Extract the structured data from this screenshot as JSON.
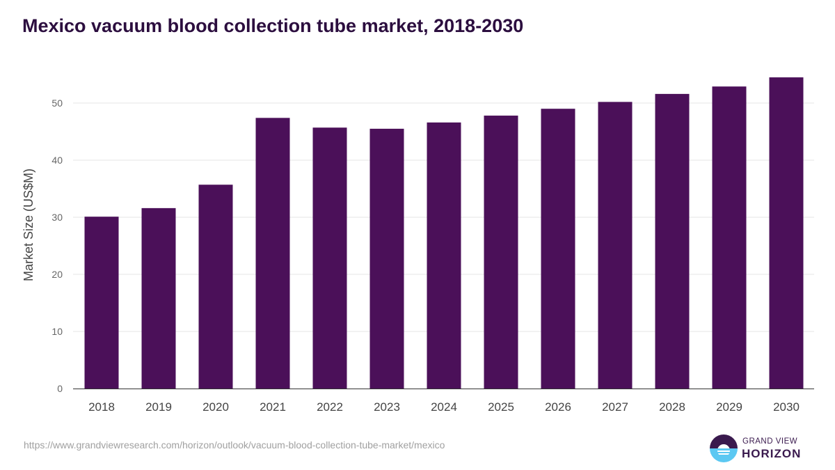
{
  "chart_data": {
    "type": "bar",
    "title": "Mexico vacuum blood collection tube market, 2018-2030",
    "xlabel": "",
    "ylabel": "Market Size (US$M)",
    "ylim": [
      0,
      55
    ],
    "yticks": [
      0,
      10,
      20,
      30,
      40,
      50
    ],
    "grid": true,
    "categories": [
      "2018",
      "2019",
      "2020",
      "2021",
      "2022",
      "2023",
      "2024",
      "2025",
      "2026",
      "2027",
      "2028",
      "2029",
      "2030"
    ],
    "values": [
      30.1,
      31.6,
      35.7,
      47.4,
      45.7,
      45.5,
      46.6,
      47.8,
      49.0,
      50.2,
      51.6,
      52.9,
      54.5
    ],
    "bar_color": "#4b1059"
  },
  "footer": {
    "url": "https://www.grandviewresearch.com/horizon/outlook/vacuum-blood-collection-tube-market/mexico",
    "logo_top": "GRAND VIEW",
    "logo_bottom": "HORIZON"
  }
}
